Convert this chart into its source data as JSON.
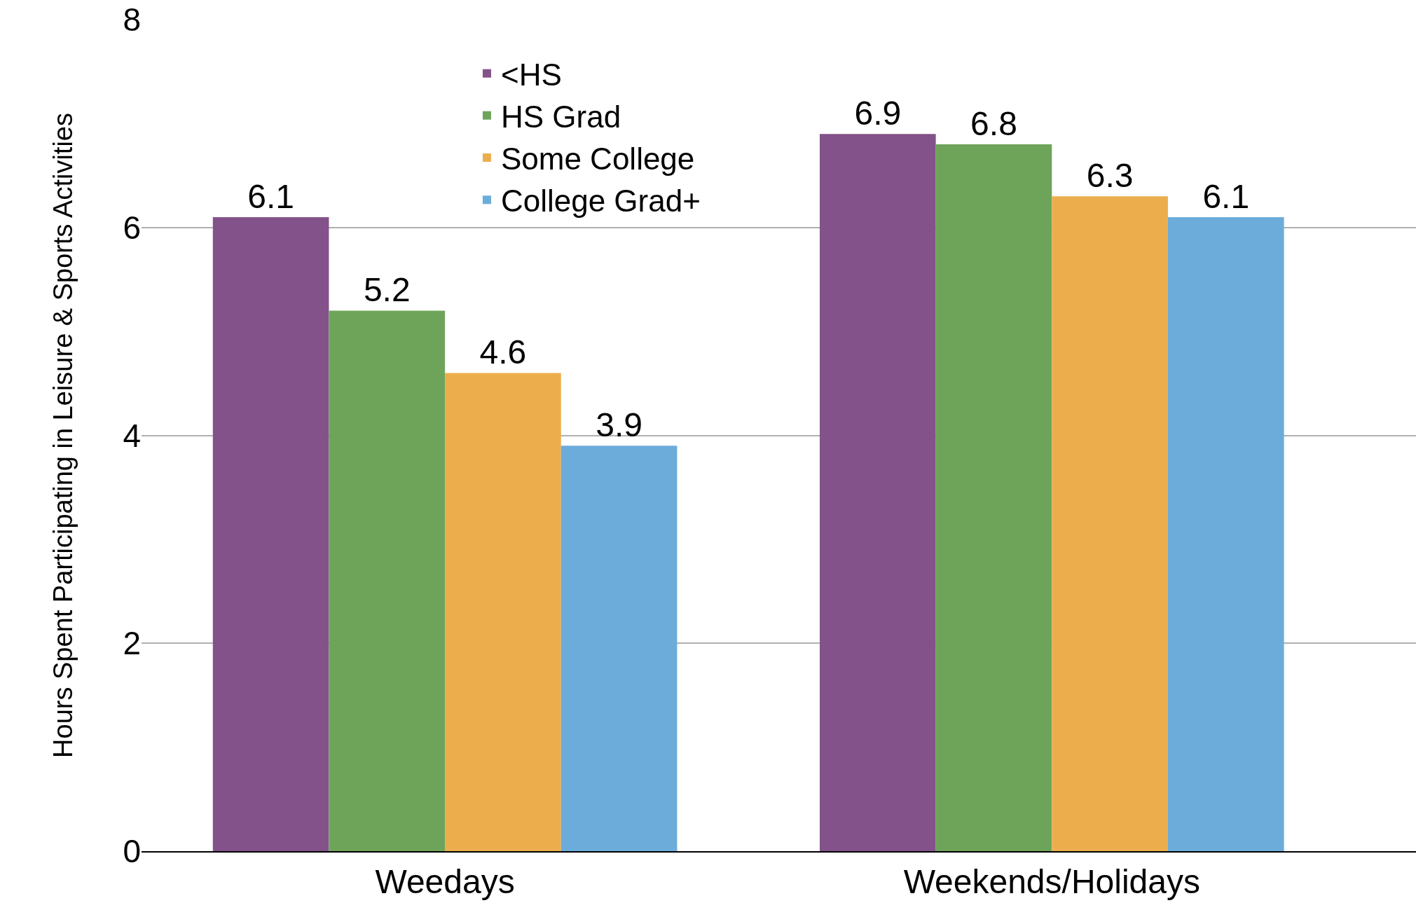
{
  "chart_data": {
    "type": "bar",
    "ylabel": "Hours Spent Participating in Leisure & Sports Activities",
    "categories": [
      "Weedays",
      "Weekends/Holidays"
    ],
    "series": [
      {
        "name": "<HS",
        "color": "#84528a",
        "values": [
          6.1,
          6.9
        ]
      },
      {
        "name": "HS Grad",
        "color": "#6ea45a",
        "values": [
          5.2,
          6.8
        ]
      },
      {
        "name": "Some College",
        "color": "#ecae4c",
        "values": [
          4.6,
          6.3
        ]
      },
      {
        "name": "College Grad+",
        "color": "#6cacdb",
        "values": [
          3.9,
          6.1
        ]
      }
    ],
    "ylim": [
      0,
      8
    ],
    "yticks": [
      0,
      2,
      4,
      6,
      8
    ],
    "grid": "y",
    "legend": "top left",
    "data_labels": true
  }
}
